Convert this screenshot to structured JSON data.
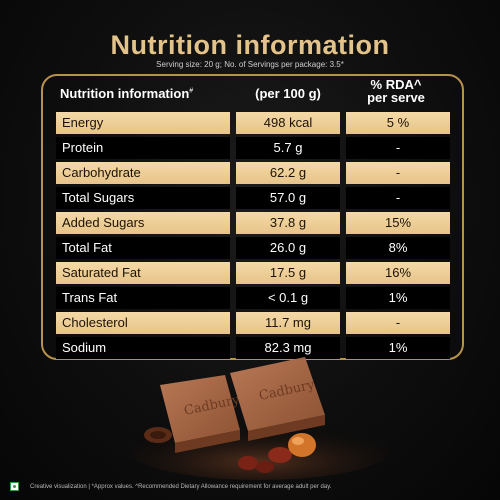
{
  "title": "Nutrition information",
  "serving_note": "Serving size: 20 g; No. of Servings per package: 3.5*",
  "table": {
    "header": {
      "name": "Nutrition information",
      "name_mark": "#",
      "qty": "(per 100 g)",
      "rda_line1": "% RDA^",
      "rda_line2": "per serve"
    },
    "rows": [
      {
        "name": "Energy",
        "qty": "498 kcal",
        "rda": "5 %"
      },
      {
        "name": "Protein",
        "qty": "5.7 g",
        "rda": "-"
      },
      {
        "name": "Carbohydrate",
        "qty": "62.2 g",
        "rda": "-"
      },
      {
        "name": "Total Sugars",
        "qty": "57.0 g",
        "rda": "-"
      },
      {
        "name": "Added Sugars",
        "qty": "37.8 g",
        "rda": "15%"
      },
      {
        "name": "Total Fat",
        "qty": "26.0 g",
        "rda": "8%"
      },
      {
        "name": "Saturated Fat",
        "qty": "17.5 g",
        "rda": "16%"
      },
      {
        "name": "Trans Fat",
        "qty": "< 0.1 g",
        "rda": "1%"
      },
      {
        "name": "Cholesterol",
        "qty": "11.7 mg",
        "rda": "-"
      },
      {
        "name": "Sodium",
        "qty": "82.3 mg",
        "rda": "1%"
      }
    ]
  },
  "chocolate_logo": "Cadbury",
  "footer": "Creative visualization | *Approx values. ^Recommended Dietary Allowance requirement for average adult per day.",
  "colors": {
    "gold": "#e3c389",
    "row_gold": "#f0d29b",
    "border": "#b8924d",
    "veg_mark": "#2f9e41"
  }
}
